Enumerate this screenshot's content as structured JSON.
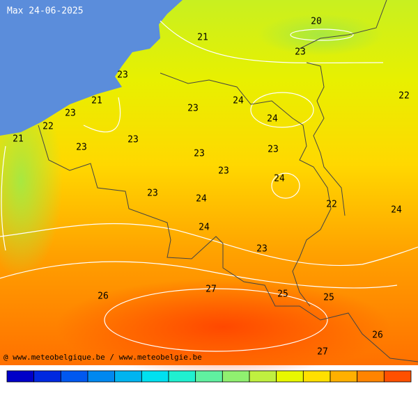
{
  "map": {
    "title": "Max 24-06-2025",
    "labels": [
      20,
      21,
      23,
      23,
      22,
      21,
      24,
      23,
      23,
      24,
      22,
      21,
      23,
      23,
      23,
      23,
      23,
      24,
      23,
      24,
      22,
      24,
      24,
      23,
      27,
      25,
      26,
      25,
      26,
      27
    ],
    "credit": "@ www.meteobelgique.be / www.meteobelgie.be"
  },
  "colorbar": {
    "colors": [
      "#0000c8",
      "#0028e0",
      "#0058f0",
      "#0088f0",
      "#00b4f0",
      "#00e0f0",
      "#20f0d0",
      "#60f0a0",
      "#90f070",
      "#c0f040",
      "#e8f800",
      "#ffe000",
      "#ffb000",
      "#ff8400",
      "#ff5000"
    ]
  }
}
